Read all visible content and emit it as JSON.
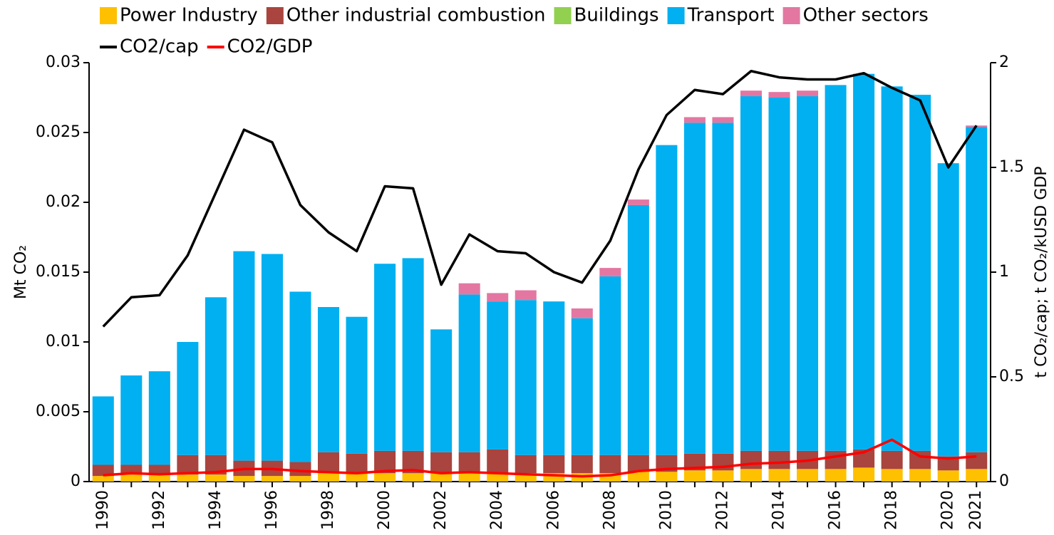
{
  "chart_data": {
    "type": "bar",
    "stacked": true,
    "ylabel": "Mt CO₂",
    "y2label": "t CO₂/cap; t CO₂/kUSD GDP",
    "categories": [
      "1990",
      null,
      "1992",
      null,
      "1994",
      null,
      "1996",
      null,
      "1998",
      null,
      "2000",
      null,
      "2002",
      null,
      "2004",
      null,
      "2006",
      null,
      "2008",
      null,
      "2010",
      null,
      "2012",
      null,
      "2014",
      null,
      "2016",
      null,
      "2018",
      null,
      "2020",
      "2021"
    ],
    "ylim": [
      0,
      0.03
    ],
    "yticks": [
      0,
      0.005,
      0.01,
      0.015,
      0.02,
      0.025,
      0.03
    ],
    "y2lim": [
      0,
      2
    ],
    "y2ticks": [
      0,
      0.5,
      1,
      1.5,
      2
    ],
    "series": [
      {
        "name": "Power Industry",
        "color": "#ffc000",
        "values": [
          0.0004,
          0.0005,
          0.0005,
          0.0005,
          0.0005,
          0.0004,
          0.0004,
          0.0004,
          0.0006,
          0.0006,
          0.0006,
          0.0006,
          0.0006,
          0.0006,
          0.0006,
          0.0006,
          0.0006,
          0.0006,
          0.0006,
          0.0007,
          0.0007,
          0.0008,
          0.0008,
          0.0009,
          0.0009,
          0.0009,
          0.0009,
          0.001,
          0.0009,
          0.0009,
          0.0008,
          0.0009
        ]
      },
      {
        "name": "Other industrial combustion",
        "color": "#a9443e",
        "values": [
          0.0008,
          0.0007,
          0.0007,
          0.0014,
          0.0014,
          0.0011,
          0.0011,
          0.001,
          0.0015,
          0.0014,
          0.0016,
          0.0016,
          0.0015,
          0.0015,
          0.0017,
          0.0013,
          0.0013,
          0.0013,
          0.0013,
          0.0012,
          0.0012,
          0.0012,
          0.0012,
          0.0013,
          0.0013,
          0.0013,
          0.0013,
          0.0013,
          0.0013,
          0.0013,
          0.001,
          0.0012
        ]
      },
      {
        "name": "Buildings",
        "color": "#92d050",
        "values": [
          0,
          0,
          0,
          0,
          0,
          0,
          0,
          0,
          0,
          0,
          0,
          0,
          0,
          0,
          0,
          0,
          0,
          0,
          0,
          0,
          0,
          0,
          0,
          0,
          0,
          0,
          0,
          0,
          0,
          0,
          0,
          0
        ]
      },
      {
        "name": "Transport",
        "color": "#00b0f0",
        "values": [
          0.0049,
          0.0064,
          0.0067,
          0.0081,
          0.0113,
          0.015,
          0.0148,
          0.0122,
          0.0104,
          0.0098,
          0.0134,
          0.0138,
          0.0088,
          0.0113,
          0.0106,
          0.0111,
          0.011,
          0.0098,
          0.0128,
          0.0179,
          0.0222,
          0.0237,
          0.0237,
          0.0254,
          0.0253,
          0.0254,
          0.0262,
          0.0269,
          0.0261,
          0.0255,
          0.021,
          0.0233
        ]
      },
      {
        "name": "Other sectors",
        "color": "#e377a2",
        "values": [
          0,
          0,
          0,
          0,
          0,
          0,
          0,
          0,
          0,
          0,
          0,
          0,
          0,
          0.0008,
          0.0006,
          0.0007,
          0,
          0.0007,
          0.0006,
          0.0004,
          0,
          0.0004,
          0.0004,
          0.0004,
          0.0004,
          0.0004,
          0,
          0,
          0,
          0,
          0,
          0.0001
        ]
      },
      {
        "name": "CO2/cap",
        "color": "#000000",
        "axis": "y2",
        "values": [
          0.74,
          0.88,
          0.89,
          1.08,
          1.38,
          1.68,
          1.62,
          1.32,
          1.19,
          1.1,
          1.41,
          1.4,
          0.94,
          1.18,
          1.1,
          1.09,
          1.0,
          0.95,
          1.15,
          1.49,
          1.75,
          1.87,
          1.85,
          1.96,
          1.93,
          1.92,
          1.92,
          1.95,
          1.88,
          1.82,
          1.5,
          1.7
        ]
      },
      {
        "name": "CO2/GDP",
        "color": "#ff0000",
        "axis": "y2",
        "values": [
          0.03,
          0.04,
          0.035,
          0.04,
          0.045,
          0.06,
          0.06,
          0.05,
          0.045,
          0.04,
          0.05,
          0.055,
          0.04,
          0.045,
          0.04,
          0.035,
          0.03,
          0.025,
          0.03,
          0.05,
          0.06,
          0.065,
          0.07,
          0.085,
          0.09,
          0.1,
          0.12,
          0.14,
          0.2,
          0.12,
          0.11,
          0.12
        ]
      }
    ]
  }
}
